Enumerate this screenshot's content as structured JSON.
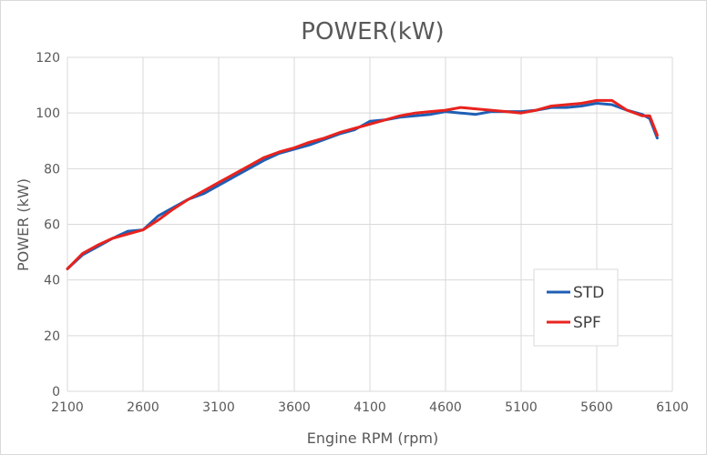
{
  "chart_data": {
    "type": "line",
    "title": "POWER(kW)",
    "xlabel": "Engine RPM (rpm)",
    "ylabel": "POWER (kW)",
    "xlim": [
      2100,
      6100
    ],
    "ylim": [
      0,
      120
    ],
    "xticks": [
      "2100",
      "2600",
      "3100",
      "3600",
      "4100",
      "4600",
      "5100",
      "5600",
      "6100"
    ],
    "yticks": [
      "0",
      "20",
      "40",
      "60",
      "80",
      "100",
      "120"
    ],
    "grid": true,
    "legend_position": "right",
    "series": [
      {
        "name": "STD",
        "color": "#1f5fb4",
        "x": [
          2100,
          2200,
          2300,
          2400,
          2500,
          2600,
          2700,
          2800,
          2900,
          3000,
          3100,
          3200,
          3300,
          3400,
          3500,
          3600,
          3700,
          3800,
          3900,
          4000,
          4100,
          4200,
          4300,
          4400,
          4500,
          4600,
          4700,
          4800,
          4900,
          5000,
          5100,
          5200,
          5300,
          5400,
          5500,
          5600,
          5700,
          5800,
          5900,
          5950,
          6000
        ],
        "y": [
          44,
          49,
          52,
          55,
          57.5,
          58,
          63,
          66,
          69,
          71,
          74,
          77,
          80,
          83,
          85.5,
          87,
          88.5,
          90.5,
          92.5,
          94,
          97,
          97.5,
          98.5,
          99,
          99.5,
          100.5,
          100,
          99.5,
          100.5,
          100.5,
          100.5,
          101,
          102,
          102,
          102.5,
          103.5,
          103,
          101,
          99.5,
          98,
          91
        ]
      },
      {
        "name": "SPF",
        "color": "#e8231e",
        "x": [
          2100,
          2200,
          2300,
          2400,
          2500,
          2600,
          2700,
          2800,
          2900,
          3000,
          3100,
          3200,
          3300,
          3400,
          3500,
          3600,
          3700,
          3800,
          3900,
          4000,
          4100,
          4200,
          4300,
          4400,
          4500,
          4600,
          4700,
          4800,
          4900,
          5000,
          5100,
          5200,
          5300,
          5400,
          5500,
          5600,
          5700,
          5800,
          5900,
          5950,
          6000
        ],
        "y": [
          44,
          49.5,
          52.5,
          55,
          56.5,
          58,
          61.5,
          65.5,
          69,
          72,
          75,
          78,
          81,
          84,
          86,
          87.5,
          89.5,
          91,
          93,
          94.5,
          96,
          97.5,
          99,
          100,
          100.5,
          101,
          102,
          101.5,
          101,
          100.5,
          100,
          101,
          102.5,
          103,
          103.5,
          104.5,
          104.5,
          101,
          99,
          99,
          92
        ]
      }
    ]
  }
}
